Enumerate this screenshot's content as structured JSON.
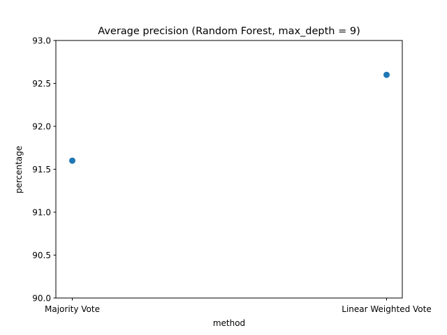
{
  "chart_data": {
    "type": "scatter",
    "title": "Average precision (Random Forest, max_depth = 9)",
    "xlabel": "method",
    "ylabel": "percentage",
    "categories": [
      "Majority Vote",
      "Linear Weighted Vote"
    ],
    "values": [
      91.6,
      92.6
    ],
    "ylim": [
      90.0,
      93.0
    ],
    "yticks": [
      "90.0",
      "90.5",
      "91.0",
      "91.5",
      "92.0",
      "92.5",
      "93.0"
    ],
    "grid": false,
    "marker_color": "#1f77b4"
  }
}
